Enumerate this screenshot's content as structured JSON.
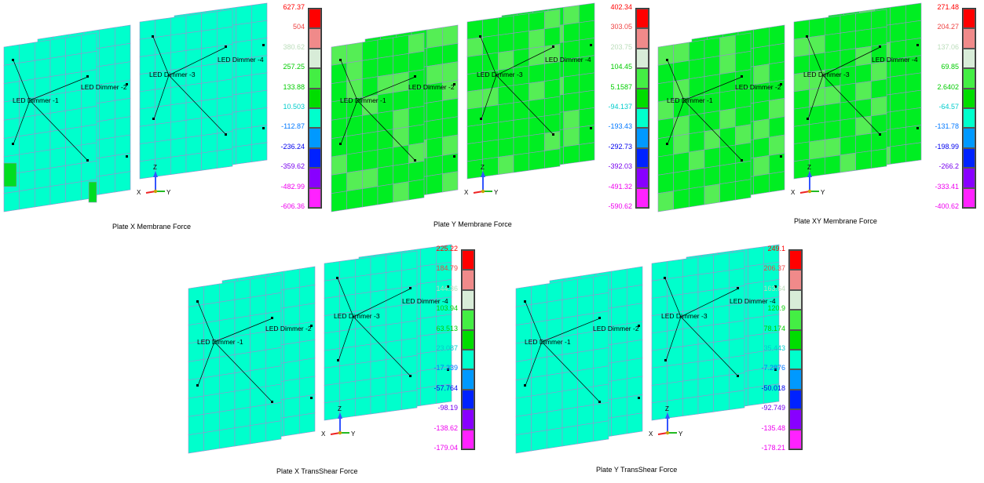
{
  "colors": {
    "cyan": "#00ffcc",
    "green": "#00ee22",
    "grid": "#9a8fd0",
    "scale": [
      "#ff0000",
      "#f08a8a",
      "#d8ecd8",
      "#44ee44",
      "#00dd00",
      "#00ffcc",
      "#0099ff",
      "#0022ff",
      "#8800ff",
      "#ff22ff"
    ],
    "value_colors": [
      "#ff0000",
      "#ee4444",
      "#bbddbb",
      "#00cc00",
      "#00cc00",
      "#00cccc",
      "#0077ff",
      "#0000ee",
      "#7700ee",
      "#ee00ee"
    ]
  },
  "dimmer_labels": [
    "LED Dimmer -1",
    "LED Dimmer -2",
    "LED Dimmer -3",
    "LED Dimmer -4"
  ],
  "axes": {
    "x": "X",
    "y": "Y",
    "z": "Z"
  },
  "panels": [
    {
      "id": "pxm",
      "caption": "Plate X Membrane Force",
      "plate_color": "cyan",
      "legend_values": [
        "627.37",
        "504",
        "380.62",
        "257.25",
        "133.88",
        "10.503",
        "-112.87",
        "-236.24",
        "-359.62",
        "-482.99",
        "-606.36"
      ]
    },
    {
      "id": "pym",
      "caption": "Plate Y Membrane Force",
      "plate_color": "green",
      "legend_values": [
        "402.34",
        "303.05",
        "203.75",
        "104.45",
        "5.1587",
        "-94.137",
        "-193.43",
        "-292.73",
        "-392.03",
        "-491.32",
        "-590.62"
      ]
    },
    {
      "id": "pxym",
      "caption": "Plate XY Membrane Force",
      "plate_color": "green",
      "legend_values": [
        "271.48",
        "204.27",
        "137.06",
        "69.85",
        "2.6402",
        "-64.57",
        "-131.78",
        "-198.99",
        "-266.2",
        "-333.41",
        "-400.62"
      ]
    },
    {
      "id": "pxt",
      "caption": "Plate X TransShear Force",
      "plate_color": "cyan",
      "legend_values": [
        "225.22",
        "184.79",
        "144.36",
        "103.94",
        "63.513",
        "23.087",
        "-17.339",
        "-57.764",
        "-98.19",
        "-138.62",
        "-179.04"
      ]
    },
    {
      "id": "pyt",
      "caption": "Plate Y TransShear Force",
      "plate_color": "cyan",
      "legend_values": [
        "249.1",
        "206.37",
        "163.64",
        "120.9",
        "78.174",
        "35.443",
        "-7.2876",
        "-50.018",
        "-92.749",
        "-135.48",
        "-178.21"
      ]
    }
  ]
}
